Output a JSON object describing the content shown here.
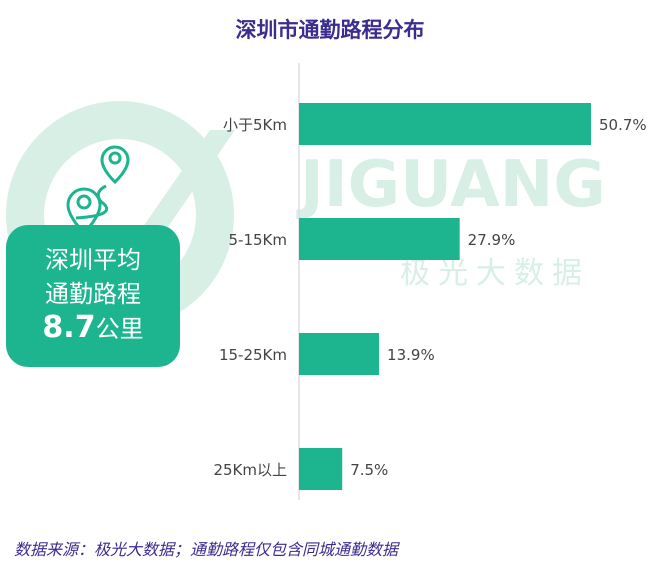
{
  "title": "深圳市通勤路程分布",
  "watermark": {
    "brand": "JIGUANG",
    "brand_cn": "极光大数据"
  },
  "card": {
    "line1": "深圳平均",
    "line2": "通勤路程",
    "value": "8.7",
    "unit": "公里"
  },
  "footer": "数据来源：极光大数据；通勤路程仅包含同城通勤数据",
  "colors": {
    "bar": "#1db58f",
    "title": "#3b2d8f"
  },
  "chart_data": {
    "type": "bar",
    "orientation": "horizontal",
    "title": "深圳市通勤路程分布",
    "categories": [
      "小于5Km",
      "5-15Km",
      "15-25Km",
      "25Km以上"
    ],
    "values": [
      50.7,
      27.9,
      13.9,
      7.5
    ],
    "labels": [
      "50.7%",
      "27.9%",
      "13.9%",
      "7.5%"
    ],
    "unit": "%",
    "xlim": [
      0,
      50.7
    ]
  }
}
